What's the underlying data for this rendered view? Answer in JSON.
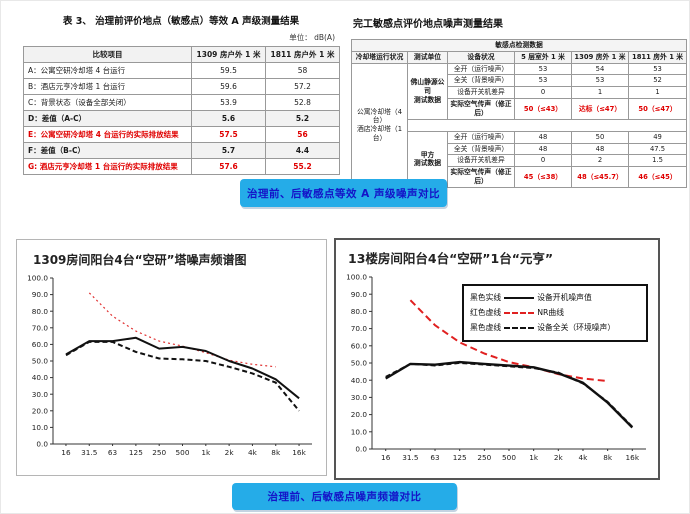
{
  "banners": {
    "top": "治理前、后敏感点等效 A 声级噪声对比",
    "bottom": "治理前、后敏感点噪声频谱对比"
  },
  "colors": {
    "red_text": "#e00000",
    "banner_bg": "#25ace8",
    "banner_text": "#1414c8",
    "nr_curve_red": "#e02020",
    "line_black": "#111111"
  },
  "left_table": {
    "title": "表 3、  治理前评价地点（敏感点）等效 A 声级测量结果",
    "unit": "单位： dB(A)",
    "headers": [
      "比较项目",
      "1309 房户外 1 米",
      "1811 房户外 1 米"
    ],
    "rows": [
      {
        "label": "A：公寓空研冷却塔 4 台运行",
        "v1": "59.5",
        "v2": "58",
        "style": "normal"
      },
      {
        "label": "B：酒店元亨冷却塔 1 台运行",
        "v1": "59.6",
        "v2": "57.2",
        "style": "normal"
      },
      {
        "label": "C：背景状态（设备全部关闭）",
        "v1": "53.9",
        "v2": "52.8",
        "style": "normal"
      },
      {
        "label": "D：差值（A-C）",
        "v1": "5.6",
        "v2": "5.2",
        "style": "bold"
      },
      {
        "label": "E：公寓空研冷却塔 4 台运行的实际排放结果",
        "v1": "57.5",
        "v2": "56",
        "style": "red"
      },
      {
        "label": "F：差值（B-C）",
        "v1": "5.7",
        "v2": "4.4",
        "style": "bold"
      },
      {
        "label": "G: 酒店元亨冷却塔 1 台运行的实际排放结果",
        "v1": "57.6",
        "v2": "55.2",
        "style": "red"
      }
    ]
  },
  "right_table": {
    "title": "完工敏感点评价地点噪声测量结果",
    "span_header": "敏感点检测数据",
    "col_headers": [
      "冷却塔运行状况",
      "测试单位",
      "设备状况",
      "5 层室外 1 米",
      "1309 房外 1 米",
      "1811 房外 1 米"
    ],
    "row_label_lines": [
      "公寓冷却塔（4 台）",
      "酒店冷却塔（1 台）"
    ],
    "groups": [
      {
        "unit_lines": [
          "佛山静源公司",
          "测试数据"
        ],
        "rows": [
          {
            "label": "全开（运行噪声）",
            "v": [
              "53",
              "54",
              "53"
            ],
            "red": false
          },
          {
            "label": "全关（背景噪声）",
            "v": [
              "53",
              "53",
              "52"
            ],
            "red": false
          },
          {
            "label": "设备开关机差异",
            "v": [
              "0",
              "1",
              "1"
            ],
            "red": false
          },
          {
            "label": "实际空气传声（修正后）",
            "v": [
              "50（≤43）",
              "达标（≤47）",
              "50（≤47）"
            ],
            "red": true
          }
        ]
      },
      {
        "unit_lines": [
          "甲方",
          "测试数据"
        ],
        "rows": [
          {
            "label": "全开（运行噪声）",
            "v": [
              "48",
              "50",
              "49"
            ],
            "red": false
          },
          {
            "label": "全关（背景噪声）",
            "v": [
              "48",
              "48",
              "47.5"
            ],
            "red": false
          },
          {
            "label": "设备开关机差异",
            "v": [
              "0",
              "2",
              "1.5"
            ],
            "red": false
          },
          {
            "label": "实际空气传声（修正后）",
            "v": [
              "45（≤38）",
              "48（≤45.7）",
              "46（≤45）"
            ],
            "red": true
          }
        ]
      }
    ]
  },
  "chart_data": [
    {
      "type": "line",
      "title": "1309房间阳台4台“空研”塔噪声频谱图",
      "categories": [
        "16",
        "31.5",
        "63",
        "125",
        "250",
        "500",
        "1k",
        "2k",
        "4k",
        "8k",
        "16k"
      ],
      "xlabel": "",
      "ylabel": "",
      "ylim": [
        0,
        100
      ],
      "ytick_step": 10,
      "grid": false,
      "legend_position": "none",
      "series": [
        {
          "name": "NR曲线",
          "color": "#e03030",
          "width": 1.2,
          "dash": "2 3",
          "values": [
            null,
            91,
            77,
            68,
            62,
            59,
            55,
            50.5,
            48,
            46.5,
            null
          ]
        },
        {
          "name": "设备开机噪声值",
          "color": "#111111",
          "width": 2,
          "dash": "",
          "values": [
            54,
            62,
            62,
            64,
            57.5,
            58.5,
            56,
            50,
            45.5,
            39,
            27.5
          ]
        },
        {
          "name": "设备全关（环境噪声）",
          "color": "#111111",
          "width": 2,
          "dash": "5 3",
          "values": [
            53.5,
            61.5,
            61.5,
            55.5,
            51.5,
            51,
            50,
            46.5,
            42.5,
            37,
            20
          ]
        }
      ]
    },
    {
      "type": "line",
      "title": "13楼房间阳台4台“空研”1台“元亨”",
      "categories": [
        "16",
        "31.5",
        "63",
        "125",
        "250",
        "500",
        "1k",
        "2k",
        "4k",
        "8k",
        "16k"
      ],
      "xlabel": "",
      "ylabel": "",
      "ylim": [
        0,
        100
      ],
      "ytick_step": 10,
      "grid": false,
      "legend_position": "top-right",
      "legend": [
        {
          "prefix": "黑色实线",
          "suffix": "设备开机噪声值",
          "color": "#111111",
          "dashed": false
        },
        {
          "prefix": "红色虚线",
          "suffix": "NR曲线",
          "color": "#e02020",
          "dashed": true
        },
        {
          "prefix": "黑色虚线",
          "suffix": "设备全关（环境噪声）",
          "color": "#111111",
          "dashed": true
        }
      ],
      "series": [
        {
          "name": "NR曲线",
          "color": "#e02020",
          "width": 2,
          "dash": "7 4",
          "values": [
            null,
            86.5,
            72,
            62,
            55.5,
            50.5,
            47.5,
            43.5,
            41,
            39.5,
            null
          ]
        },
        {
          "name": "设备开机噪声值",
          "color": "#111111",
          "width": 2.4,
          "dash": "",
          "values": [
            41,
            49.5,
            49,
            50.5,
            49.5,
            48.5,
            47.5,
            44,
            38.5,
            27,
            12.5
          ]
        },
        {
          "name": "设备全关（环境噪声）",
          "color": "#111111",
          "width": 1.8,
          "dash": "5 3",
          "values": [
            42,
            49.5,
            48.5,
            50,
            49,
            48,
            47,
            44.5,
            38,
            27.5,
            13
          ]
        }
      ]
    }
  ]
}
